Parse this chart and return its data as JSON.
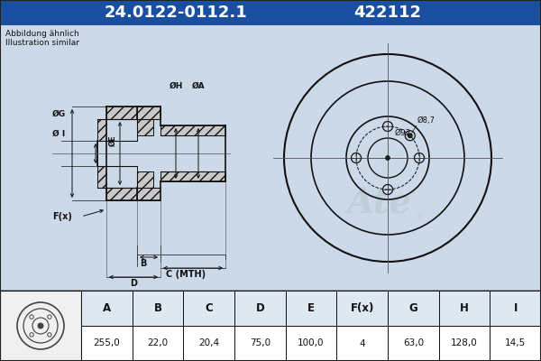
{
  "title_part_number": "24.0122-0112.1",
  "title_ref_number": "422112",
  "header_bg": "#1a4fa0",
  "header_text_color": "#ffffff",
  "note_line1": "Abbildung ähnlich",
  "note_line2": "Illustration similar",
  "bg_color": "#ccd9e8",
  "drawing_bg": "#ccd9e8",
  "table_bg": "#ffffff",
  "table_header_bg": "#e0e8f0",
  "lc": "#111111",
  "table_headers": [
    "A",
    "B",
    "C",
    "D",
    "E",
    "F(x)",
    "G",
    "H",
    "I"
  ],
  "table_values": [
    "255,0",
    "22,0",
    "20,4",
    "75,0",
    "100,0",
    "4",
    "63,0",
    "128,0",
    "14,5"
  ],
  "watermark_color": "#b0bec5",
  "watermark_alpha": 0.4
}
